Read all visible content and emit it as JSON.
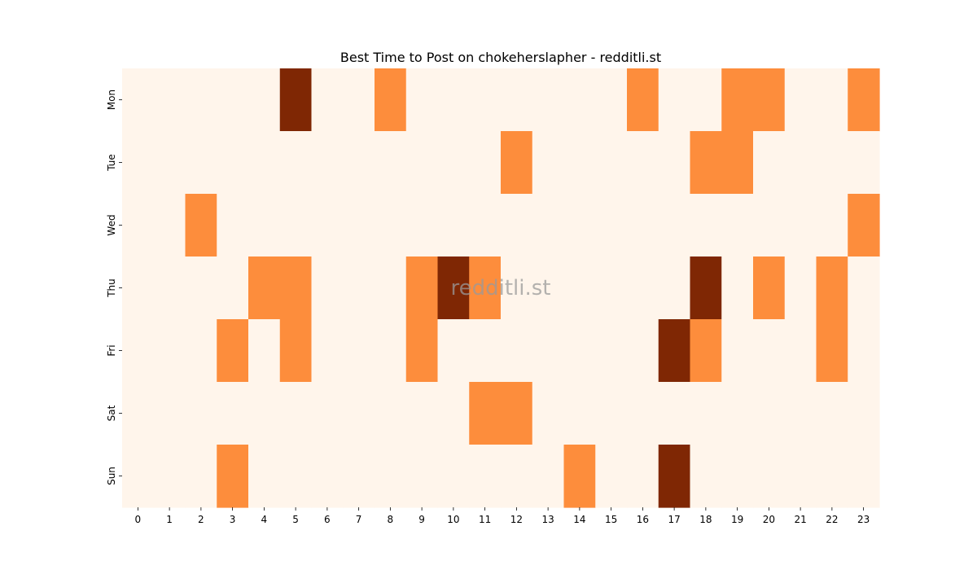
{
  "chart_data": {
    "type": "heatmap",
    "title": "Best Time to Post on chokeherslapher - redditli.st",
    "watermark": "redditli.st",
    "xlabel": "",
    "ylabel": "",
    "x_categories": [
      "0",
      "1",
      "2",
      "3",
      "4",
      "5",
      "6",
      "7",
      "8",
      "9",
      "10",
      "11",
      "12",
      "13",
      "14",
      "15",
      "16",
      "17",
      "18",
      "19",
      "20",
      "21",
      "22",
      "23"
    ],
    "y_categories": [
      "Mon",
      "Tue",
      "Wed",
      "Thu",
      "Fri",
      "Sat",
      "Sun"
    ],
    "values": [
      [
        0,
        0,
        0,
        0,
        0,
        2,
        0,
        0,
        1,
        0,
        0,
        0,
        0,
        0,
        0,
        0,
        1,
        0,
        0,
        1,
        1,
        0,
        0,
        1
      ],
      [
        0,
        0,
        0,
        0,
        0,
        0,
        0,
        0,
        0,
        0,
        0,
        0,
        1,
        0,
        0,
        0,
        0,
        0,
        1,
        1,
        0,
        0,
        0,
        0
      ],
      [
        0,
        0,
        1,
        0,
        0,
        0,
        0,
        0,
        0,
        0,
        0,
        0,
        0,
        0,
        0,
        0,
        0,
        0,
        0,
        0,
        0,
        0,
        0,
        1
      ],
      [
        0,
        0,
        0,
        0,
        1,
        1,
        0,
        0,
        0,
        1,
        2,
        1,
        0,
        0,
        0,
        0,
        0,
        0,
        2,
        0,
        1,
        0,
        1,
        0
      ],
      [
        0,
        0,
        0,
        1,
        0,
        1,
        0,
        0,
        0,
        1,
        0,
        0,
        0,
        0,
        0,
        0,
        0,
        2,
        1,
        0,
        0,
        0,
        1,
        0
      ],
      [
        0,
        0,
        0,
        0,
        0,
        0,
        0,
        0,
        0,
        0,
        0,
        1,
        1,
        0,
        0,
        0,
        0,
        0,
        0,
        0,
        0,
        0,
        0,
        0
      ],
      [
        0,
        0,
        0,
        1,
        0,
        0,
        0,
        0,
        0,
        0,
        0,
        0,
        0,
        0,
        1,
        0,
        0,
        2,
        0,
        0,
        0,
        0,
        0,
        0
      ]
    ],
    "colormap": [
      "#fff5eb",
      "#fd8d3c",
      "#7f2704"
    ],
    "grid": false,
    "legend": "none"
  }
}
